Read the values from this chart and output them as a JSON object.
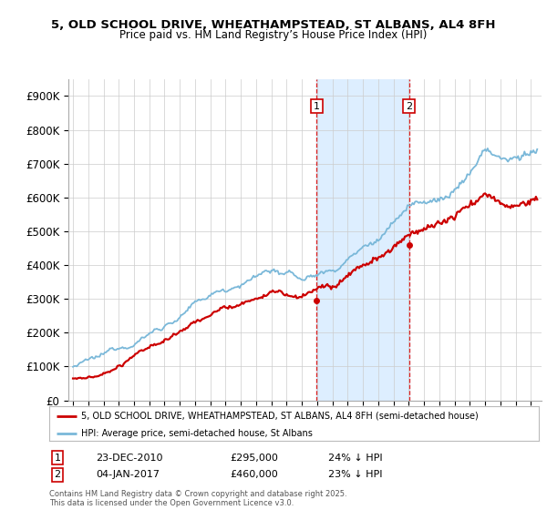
{
  "title_line1": "5, OLD SCHOOL DRIVE, WHEATHAMPSTEAD, ST ALBANS, AL4 8FH",
  "title_line2": "Price paid vs. HM Land Registry’s House Price Index (HPI)",
  "ylim": [
    0,
    950000
  ],
  "yticks": [
    0,
    100000,
    200000,
    300000,
    400000,
    500000,
    600000,
    700000,
    800000,
    900000
  ],
  "ytick_labels": [
    "£0",
    "£100K",
    "£200K",
    "£300K",
    "£400K",
    "£500K",
    "£600K",
    "£700K",
    "£800K",
    "£900K"
  ],
  "hpi_color": "#7ab8d9",
  "price_color": "#cc0000",
  "vline_color": "#dd2222",
  "span_color": "#ddeeff",
  "annotation_box_edgecolor": "#cc0000",
  "background_color": "#ffffff",
  "grid_color": "#cccccc",
  "legend_label_price": "5, OLD SCHOOL DRIVE, WHEATHAMPSTEAD, ST ALBANS, AL4 8FH (semi-detached house)",
  "legend_label_hpi": "HPI: Average price, semi-detached house, St Albans",
  "footnote": "Contains HM Land Registry data © Crown copyright and database right 2025.\nThis data is licensed under the Open Government Licence v3.0.",
  "transaction1_date": "23-DEC-2010",
  "transaction1_price": "£295,000",
  "transaction1_hpi": "24% ↓ HPI",
  "transaction1_year": 2010.97,
  "transaction2_date": "04-JAN-2017",
  "transaction2_price": "£460,000",
  "transaction2_hpi": "23% ↓ HPI",
  "transaction2_year": 2017.02,
  "xmin": 1994.7,
  "xmax": 2025.7,
  "t1_price_val": 295000,
  "t2_price_val": 460000
}
